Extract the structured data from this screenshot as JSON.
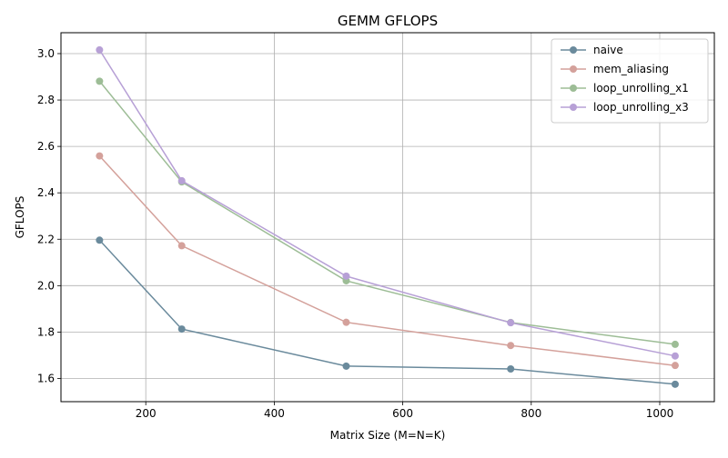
{
  "chart_data": {
    "type": "line",
    "title": "GEMM GFLOPS",
    "xlabel": "Matrix Size (M=N=K)",
    "ylabel": "GFLOPS",
    "x": [
      128,
      256,
      512,
      768,
      1024
    ],
    "xlim": [
      68,
      1085
    ],
    "ylim": [
      1.5,
      3.09
    ],
    "xticks": [
      200,
      400,
      600,
      800,
      1000
    ],
    "yticks": [
      1.6,
      1.8,
      2.0,
      2.2,
      2.4,
      2.6,
      2.8,
      3.0
    ],
    "xtick_labels": [
      "200",
      "400",
      "600",
      "800",
      "1000"
    ],
    "ytick_labels": [
      "1.6",
      "1.8",
      "2.0",
      "2.2",
      "2.4",
      "2.6",
      "2.8",
      "3.0"
    ],
    "grid": true,
    "legend_position": "top-right",
    "series": [
      {
        "name": "naive",
        "color": "#6a8a9c",
        "values": [
          2.196,
          1.813,
          1.653,
          1.641,
          1.575
        ]
      },
      {
        "name": "mem_aliasing",
        "color": "#d4a19b",
        "values": [
          2.559,
          2.172,
          1.842,
          1.742,
          1.656
        ]
      },
      {
        "name": "loop_unrolling_x1",
        "color": "#9dbd96",
        "values": [
          2.881,
          2.447,
          2.021,
          1.841,
          1.747
        ]
      },
      {
        "name": "loop_unrolling_x3",
        "color": "#b7a0d6",
        "values": [
          3.016,
          2.452,
          2.041,
          1.84,
          1.697
        ]
      }
    ]
  }
}
